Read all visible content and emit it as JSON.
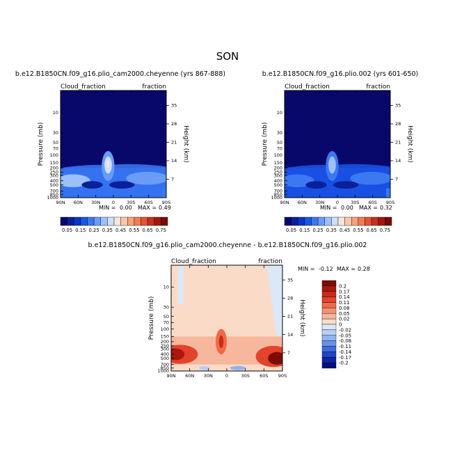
{
  "page_title": "SON",
  "chart_data": [
    {
      "type": "heatmap",
      "id": "p1",
      "title": "b.e12.B1850CN.f09_g16.plio_cam2000.cheyenne (yrs 867-888)",
      "left_label": "Cloud_fraction",
      "right_label": "fraction",
      "ylabel": "Pressure (mb)",
      "y2label": "Height (km)",
      "x_ticks": [
        "90N",
        "60N",
        "30N",
        "0",
        "30S",
        "60S",
        "90S"
      ],
      "y_ticks": [
        "10",
        "30",
        "50",
        "70",
        "100",
        "150",
        "200",
        "250",
        "300",
        "400",
        "500",
        "700",
        "850",
        "1000"
      ],
      "y2_ticks": [
        "35",
        "28",
        "21",
        "14",
        "7"
      ],
      "stats_min_label": "MIN =",
      "stats_min": "0.00",
      "stats_max_label": "MAX =",
      "stats_max": "0.49",
      "ylim": [
        1000,
        3
      ]
    },
    {
      "type": "heatmap",
      "id": "p2",
      "title": "b.e12.B1850CN.f09_g16.plio.002 (yrs 601-650)",
      "left_label": "Cloud_fraction",
      "right_label": "fraction",
      "ylabel": "Pressure (mb)",
      "y2label": "Height (km)",
      "x_ticks": [
        "90N",
        "60N",
        "30N",
        "0",
        "30S",
        "60S",
        "90S"
      ],
      "y_ticks": [
        "10",
        "30",
        "50",
        "70",
        "100",
        "150",
        "200",
        "250",
        "300",
        "400",
        "500",
        "700",
        "850",
        "1000"
      ],
      "y2_ticks": [
        "35",
        "28",
        "21",
        "14",
        "7"
      ],
      "stats_min_label": "MIN =",
      "stats_min": "0.00",
      "stats_max_label": "MAX =",
      "stats_max": "0.32",
      "ylim": [
        1000,
        3
      ]
    },
    {
      "type": "heatmap",
      "id": "p3",
      "title": "b.e12.B1850CN.f09_g16.plio_cam2000.cheyenne - b.e12.B1850CN.f09_g16.plio.002",
      "left_label": "Cloud_fraction",
      "right_label": "fraction",
      "ylabel": "Pressure (mb)",
      "y2label": "Height (km)",
      "x_ticks": [
        "90N",
        "60N",
        "30N",
        "0",
        "30S",
        "60S",
        "90S"
      ],
      "y_ticks": [
        "10",
        "30",
        "50",
        "70",
        "100",
        "150",
        "200",
        "250",
        "300",
        "400",
        "500",
        "700",
        "850",
        "1000"
      ],
      "y2_ticks": [
        "35",
        "28",
        "21",
        "14",
        "7"
      ],
      "stats_min_label": "MIN =",
      "stats_min": "-0.12",
      "stats_max_label": "MAX =",
      "stats_max": "0.28",
      "ylim": [
        1000,
        3
      ]
    }
  ],
  "shared_colorbar": {
    "labels": [
      "0.05",
      "0.15",
      "0.25",
      "0.35",
      "0.45",
      "0.55",
      "0.65",
      "0.75"
    ],
    "colors": [
      "#08086b",
      "#0a1f9a",
      "#0d35c4",
      "#1a55e8",
      "#3b78f2",
      "#6a9cf6",
      "#9cc0f8",
      "#cce0fa",
      "#fbe6d6",
      "#f7c9a9",
      "#f3a47b",
      "#ee7c54",
      "#e35233",
      "#c8301c",
      "#a01810",
      "#7a0a06"
    ]
  },
  "diff_colorbar": {
    "labels": [
      "0.2",
      "0.17",
      "0.14",
      "0.11",
      "0.08",
      "0.05",
      "0.02",
      "0",
      "-0.02",
      "-0.05",
      "-0.08",
      "-0.11",
      "-0.14",
      "-0.17",
      "-0.2"
    ],
    "colors": [
      "#7e0c06",
      "#a8180e",
      "#c92a18",
      "#e2432a",
      "#ef6a48",
      "#f39172",
      "#f7b79c",
      "#fadbc8",
      "#dae8f8",
      "#b7d1f6",
      "#8fb4f2",
      "#6891ea",
      "#3f6cdc",
      "#1f46c6",
      "#0b25a6",
      "#04107a"
    ]
  }
}
